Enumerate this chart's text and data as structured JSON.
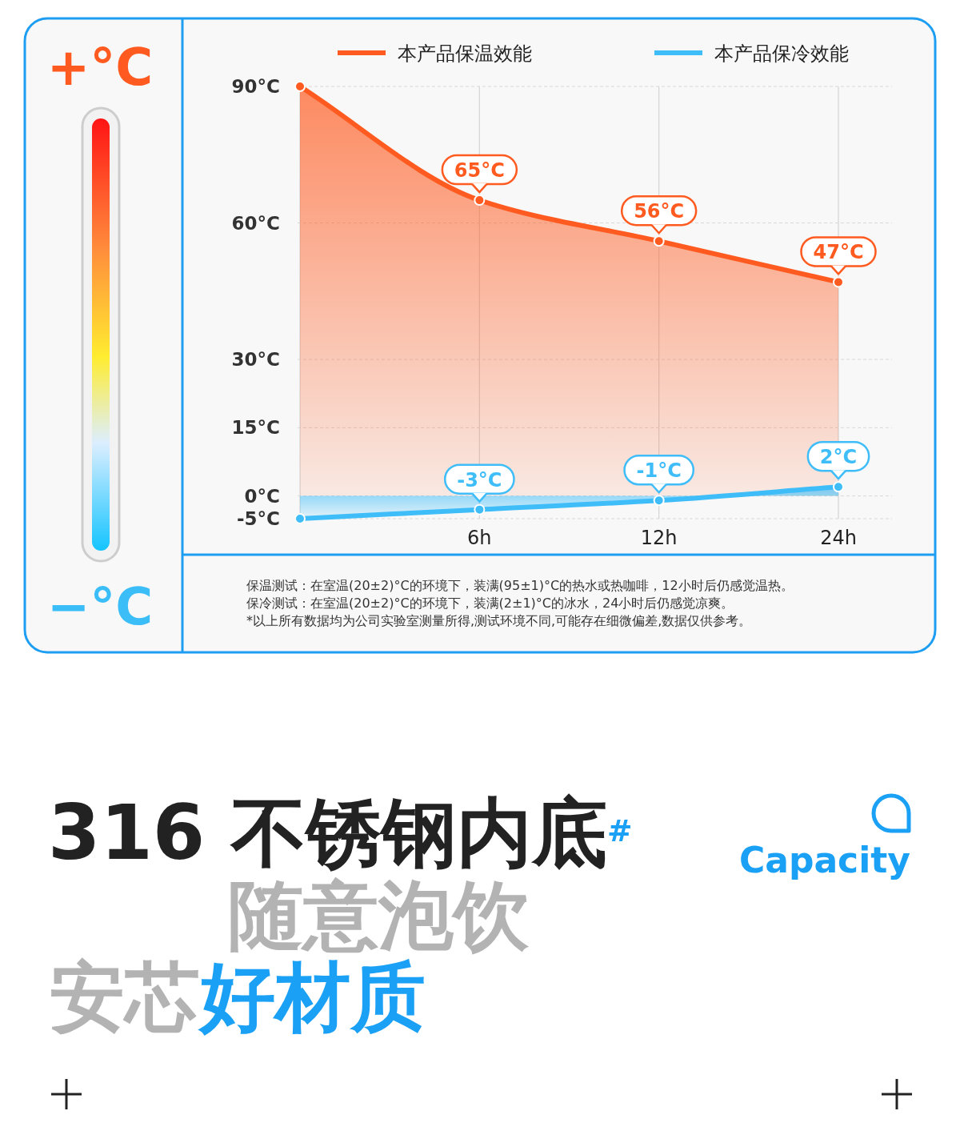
{
  "chart_data": {
    "type": "area",
    "categories": [
      null,
      "6h",
      "12h",
      "24h"
    ],
    "series": [
      {
        "name": "本产品保温效能",
        "color": "#ff5a1f",
        "values": [
          90,
          65,
          56,
          47
        ],
        "value_labels": [
          null,
          "65°C",
          "56°C",
          "47°C"
        ]
      },
      {
        "name": "本产品保冷效能",
        "color": "#3fbdf9",
        "values": [
          -5,
          -3,
          -1,
          2
        ],
        "value_labels": [
          null,
          "-3°C",
          "-1°C",
          "2°C"
        ]
      }
    ],
    "ylim": [
      -5,
      90
    ],
    "yticks": [
      {
        "value": 90,
        "label": "90°C"
      },
      {
        "value": 60,
        "label": "60°C"
      },
      {
        "value": 30,
        "label": "30°C"
      },
      {
        "value": 15,
        "label": "15°C"
      },
      {
        "value": 0,
        "label": "0°C"
      },
      {
        "value": -5,
        "label": "-5°C"
      }
    ],
    "grid": true,
    "legend": "top",
    "marker": "circle",
    "line_style": "solid",
    "annotations": [
      "+°C",
      "−°C",
      "保温测试：在室温(20±2)°C的环境下，装满(95±1)°C的热水或热咖啡，12小时后仍感觉温热。",
      "保冷测试：在室温(20±2)°C的环境下，装满(2±1)°C的冰水，24小时后仍感觉凉爽。",
      "*以上所有数据均为公司实验室测量所得,测试环境不同,可能存在细微偏差,数据仅供参考。",
      "316 不锈钢内底$^{#}$",
      "随意泡饮",
      "安芯",
      "好材质",
      "Capacity"
    ]
  }
}
